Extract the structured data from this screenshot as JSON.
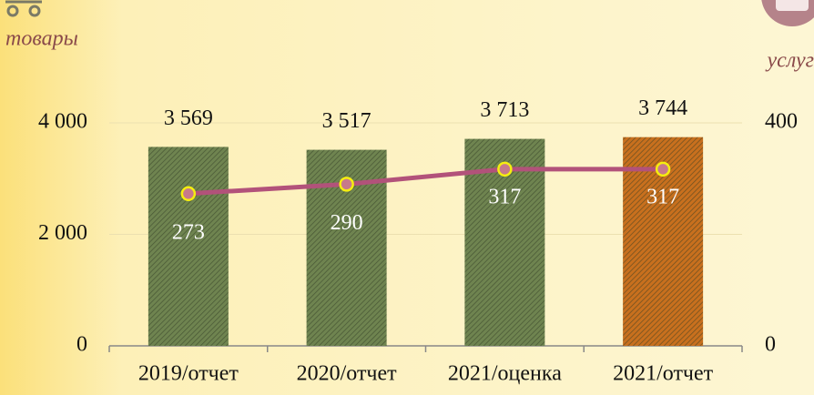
{
  "chart_data": {
    "type": "bar",
    "labels_top": [
      "товары",
      "услуг"
    ],
    "categories": [
      "2019/отчет",
      "2020/отчет",
      "2021/оценка",
      "2021/отчет"
    ],
    "values": [
      3569,
      3517,
      3713,
      3744
    ],
    "value_labels": [
      "3 569",
      "3 517",
      "3 713",
      "3 744"
    ],
    "colors": [
      "#6f8450",
      "#6f8450",
      "#6f8450",
      "#c8701e"
    ],
    "ylim": [
      0,
      4000
    ],
    "yticks": [
      0,
      {
        "value": 2000,
        "label": "2 000"
      },
      {
        "value": 4000,
        "label": "4 000"
      }
    ],
    "y2lim": [
      0,
      400
    ],
    "y2ticks": [
      0,
      400
    ],
    "series": [
      {
        "name": "услуги",
        "type": "line",
        "axis": "y2",
        "color": "#b2527a",
        "values": [
          273,
          290,
          317,
          317
        ]
      }
    ],
    "grid": true
  }
}
